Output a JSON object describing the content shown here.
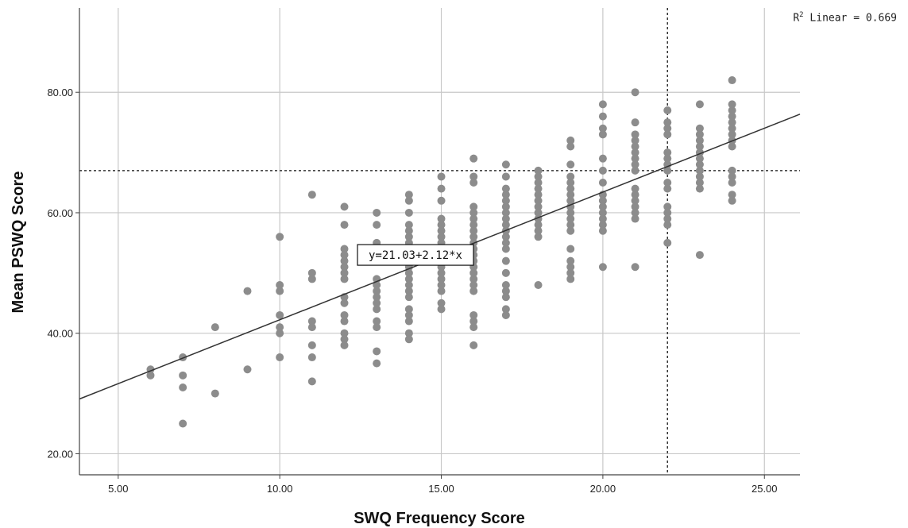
{
  "chart_data": {
    "type": "scatter",
    "title": "",
    "xlabel": "SWQ Frequency Score",
    "ylabel": "Mean PSWQ Score",
    "xlim": [
      3.8,
      26.1
    ],
    "ylim": [
      16.5,
      94
    ],
    "xticks": [
      5,
      10,
      15,
      20,
      25
    ],
    "xtick_labels": [
      "5.00",
      "10.00",
      "15.00",
      "20.00",
      "25.00"
    ],
    "yticks": [
      20,
      40,
      60,
      80
    ],
    "ytick_labels": [
      "20.00",
      "40.00",
      "60.00",
      "80.00"
    ],
    "grid": true,
    "fit_line": {
      "intercept": 21.03,
      "slope": 2.12,
      "label": "y=21.03+2.12*x",
      "label_at": [
        14.2,
        53
      ]
    },
    "r2": {
      "prefix": "R",
      "sup": "2",
      "text": " Linear = 0.669"
    },
    "reference_lines": {
      "x": 22,
      "y": 67
    },
    "point_color": "#8c8c8c",
    "line_color": "#333333",
    "points": [
      [
        6,
        34
      ],
      [
        6,
        33
      ],
      [
        7,
        36
      ],
      [
        7,
        33
      ],
      [
        7,
        31
      ],
      [
        7,
        25
      ],
      [
        8,
        41
      ],
      [
        8,
        30
      ],
      [
        9,
        47
      ],
      [
        9,
        34
      ],
      [
        10,
        56
      ],
      [
        10,
        48
      ],
      [
        10,
        47
      ],
      [
        10,
        43
      ],
      [
        10,
        41
      ],
      [
        10,
        40
      ],
      [
        10,
        36
      ],
      [
        11,
        63
      ],
      [
        11,
        50
      ],
      [
        11,
        49
      ],
      [
        11,
        42
      ],
      [
        11,
        41
      ],
      [
        11,
        38
      ],
      [
        11,
        36
      ],
      [
        11,
        32
      ],
      [
        12,
        61
      ],
      [
        12,
        58
      ],
      [
        12,
        54
      ],
      [
        12,
        53
      ],
      [
        12,
        52
      ],
      [
        12,
        51
      ],
      [
        12,
        50
      ],
      [
        12,
        49
      ],
      [
        12,
        46
      ],
      [
        12,
        45
      ],
      [
        12,
        43
      ],
      [
        12,
        42
      ],
      [
        12,
        40
      ],
      [
        12,
        39
      ],
      [
        12,
        38
      ],
      [
        13,
        60
      ],
      [
        13,
        58
      ],
      [
        13,
        55
      ],
      [
        13,
        53
      ],
      [
        13,
        49
      ],
      [
        13,
        48
      ],
      [
        13,
        47
      ],
      [
        13,
        46
      ],
      [
        13,
        45
      ],
      [
        13,
        44
      ],
      [
        13,
        42
      ],
      [
        13,
        41
      ],
      [
        13,
        37
      ],
      [
        13,
        35
      ],
      [
        14,
        63
      ],
      [
        14,
        62
      ],
      [
        14,
        60
      ],
      [
        14,
        58
      ],
      [
        14,
        57
      ],
      [
        14,
        56
      ],
      [
        14,
        55
      ],
      [
        14,
        54
      ],
      [
        14,
        52
      ],
      [
        14,
        51
      ],
      [
        14,
        50
      ],
      [
        14,
        49
      ],
      [
        14,
        48
      ],
      [
        14,
        47
      ],
      [
        14,
        46
      ],
      [
        14,
        44
      ],
      [
        14,
        43
      ],
      [
        14,
        42
      ],
      [
        14,
        40
      ],
      [
        14,
        39
      ],
      [
        15,
        66
      ],
      [
        15,
        64
      ],
      [
        15,
        62
      ],
      [
        15,
        59
      ],
      [
        15,
        58
      ],
      [
        15,
        57
      ],
      [
        15,
        56
      ],
      [
        15,
        55
      ],
      [
        15,
        54
      ],
      [
        15,
        53
      ],
      [
        15,
        52
      ],
      [
        15,
        51
      ],
      [
        15,
        50
      ],
      [
        15,
        49
      ],
      [
        15,
        48
      ],
      [
        15,
        47
      ],
      [
        15,
        45
      ],
      [
        15,
        44
      ],
      [
        16,
        69
      ],
      [
        16,
        66
      ],
      [
        16,
        65
      ],
      [
        16,
        61
      ],
      [
        16,
        60
      ],
      [
        16,
        59
      ],
      [
        16,
        58
      ],
      [
        16,
        57
      ],
      [
        16,
        56
      ],
      [
        16,
        55
      ],
      [
        16,
        54
      ],
      [
        16,
        53
      ],
      [
        16,
        52
      ],
      [
        16,
        51
      ],
      [
        16,
        50
      ],
      [
        16,
        49
      ],
      [
        16,
        48
      ],
      [
        16,
        47
      ],
      [
        16,
        43
      ],
      [
        16,
        42
      ],
      [
        16,
        41
      ],
      [
        16,
        38
      ],
      [
        17,
        68
      ],
      [
        17,
        66
      ],
      [
        17,
        64
      ],
      [
        17,
        63
      ],
      [
        17,
        62
      ],
      [
        17,
        61
      ],
      [
        17,
        60
      ],
      [
        17,
        59
      ],
      [
        17,
        58
      ],
      [
        17,
        57
      ],
      [
        17,
        56
      ],
      [
        17,
        55
      ],
      [
        17,
        54
      ],
      [
        17,
        52
      ],
      [
        17,
        50
      ],
      [
        17,
        48
      ],
      [
        17,
        47
      ],
      [
        17,
        46
      ],
      [
        17,
        44
      ],
      [
        17,
        43
      ],
      [
        18,
        67
      ],
      [
        18,
        66
      ],
      [
        18,
        65
      ],
      [
        18,
        64
      ],
      [
        18,
        63
      ],
      [
        18,
        62
      ],
      [
        18,
        61
      ],
      [
        18,
        60
      ],
      [
        18,
        59
      ],
      [
        18,
        58
      ],
      [
        18,
        57
      ],
      [
        18,
        56
      ],
      [
        18,
        48
      ],
      [
        19,
        72
      ],
      [
        19,
        71
      ],
      [
        19,
        68
      ],
      [
        19,
        66
      ],
      [
        19,
        65
      ],
      [
        19,
        64
      ],
      [
        19,
        63
      ],
      [
        19,
        62
      ],
      [
        19,
        61
      ],
      [
        19,
        60
      ],
      [
        19,
        59
      ],
      [
        19,
        58
      ],
      [
        19,
        57
      ],
      [
        19,
        54
      ],
      [
        19,
        52
      ],
      [
        19,
        51
      ],
      [
        19,
        50
      ],
      [
        19,
        49
      ],
      [
        20,
        78
      ],
      [
        20,
        76
      ],
      [
        20,
        74
      ],
      [
        20,
        73
      ],
      [
        20,
        69
      ],
      [
        20,
        67
      ],
      [
        20,
        65
      ],
      [
        20,
        63
      ],
      [
        20,
        62
      ],
      [
        20,
        61
      ],
      [
        20,
        60
      ],
      [
        20,
        59
      ],
      [
        20,
        58
      ],
      [
        20,
        57
      ],
      [
        20,
        51
      ],
      [
        21,
        80
      ],
      [
        21,
        75
      ],
      [
        21,
        73
      ],
      [
        21,
        72
      ],
      [
        21,
        71
      ],
      [
        21,
        70
      ],
      [
        21,
        69
      ],
      [
        21,
        68
      ],
      [
        21,
        67
      ],
      [
        21,
        64
      ],
      [
        21,
        63
      ],
      [
        21,
        62
      ],
      [
        21,
        61
      ],
      [
        21,
        60
      ],
      [
        21,
        59
      ],
      [
        21,
        51
      ],
      [
        22,
        77
      ],
      [
        22,
        75
      ],
      [
        22,
        74
      ],
      [
        22,
        73
      ],
      [
        22,
        70
      ],
      [
        22,
        69
      ],
      [
        22,
        68
      ],
      [
        22,
        67
      ],
      [
        22,
        65
      ],
      [
        22,
        64
      ],
      [
        22,
        61
      ],
      [
        22,
        60
      ],
      [
        22,
        59
      ],
      [
        22,
        58
      ],
      [
        22,
        55
      ],
      [
        23,
        78
      ],
      [
        23,
        74
      ],
      [
        23,
        73
      ],
      [
        23,
        72
      ],
      [
        23,
        71
      ],
      [
        23,
        70
      ],
      [
        23,
        69
      ],
      [
        23,
        68
      ],
      [
        23,
        67
      ],
      [
        23,
        66
      ],
      [
        23,
        65
      ],
      [
        23,
        64
      ],
      [
        23,
        53
      ],
      [
        24,
        82
      ],
      [
        24,
        78
      ],
      [
        24,
        77
      ],
      [
        24,
        76
      ],
      [
        24,
        75
      ],
      [
        24,
        74
      ],
      [
        24,
        73
      ],
      [
        24,
        72
      ],
      [
        24,
        71
      ],
      [
        24,
        67
      ],
      [
        24,
        66
      ],
      [
        24,
        65
      ],
      [
        24,
        63
      ],
      [
        24,
        62
      ]
    ]
  }
}
